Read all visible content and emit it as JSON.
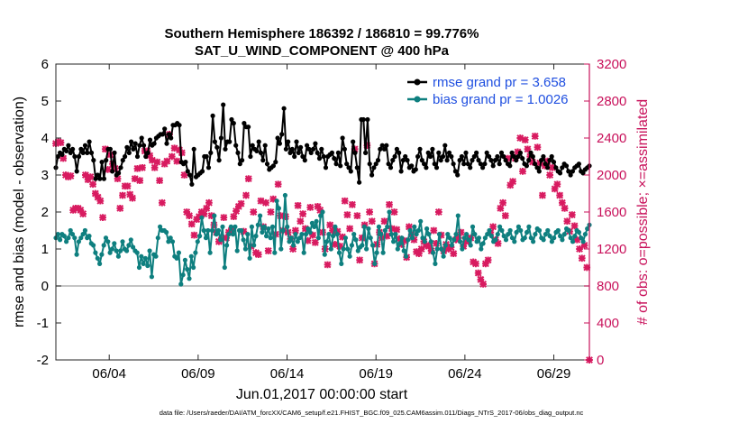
{
  "chart_data": {
    "type": "line",
    "title_line1": "Southern Hemisphere 186392 / 186810 = 99.776%",
    "title_line2": "SAT_U_WIND_COMPONENT @ 400 hPa",
    "xlabel": "Jun.01,2017 00:00:00 start",
    "ylabel": "rmse and bias (model - observation)",
    "ylabel_right": "# of obs: o=possible; ×=assimilated",
    "footnote": "data file: /Users/raeder/DAI/ATM_forcXX/CAM6_setup/f.e21.FHIST_BGC.f09_025.CAM6assim.011/Diags_NTrS_2017-06/obs_diag_output.nc",
    "xlim": [
      1,
      31
    ],
    "ylim": [
      -2,
      6
    ],
    "ylim_right": [
      0,
      3200
    ],
    "x_ticks": [
      4,
      9,
      14,
      19,
      24,
      29
    ],
    "x_tick_labels": [
      "06/04",
      "06/09",
      "06/14",
      "06/19",
      "06/24",
      "06/29"
    ],
    "y_ticks": [
      -2,
      -1,
      0,
      1,
      2,
      3,
      4,
      5,
      6
    ],
    "y_ticks_right": [
      0,
      400,
      800,
      1200,
      1600,
      2000,
      2400,
      2800,
      3200
    ],
    "grid": false,
    "legend_position": "top-right",
    "legend": [
      "rmse grand pr = 3.658",
      "bias grand pr = 1.0026"
    ],
    "colors": {
      "rmse": "#000000",
      "bias": "#0e7f7f",
      "obs": "#d81b60",
      "zero_line": "#b0b0b0",
      "right_axis": "#c8105a"
    },
    "series": [
      {
        "name": "rmse grand pr = 3.658",
        "axis": "left",
        "values": [
          3.2,
          3.5,
          3.6,
          3.55,
          3.7,
          3.65,
          3.8,
          3.6,
          3.7,
          3.5,
          3.1,
          3.5,
          3.7,
          3.6,
          3.8,
          3.6,
          3.9,
          3.6,
          3.4,
          2.9,
          3.0,
          2.9,
          3.35,
          2.9,
          3.4,
          3.7,
          3.7,
          3.1,
          3.6,
          3.0,
          3.05,
          3.2,
          3.4,
          3.5,
          3.75,
          3.6,
          3.9,
          3.7,
          3.85,
          3.5,
          3.8,
          4.0,
          3.8,
          3.5,
          3.6,
          3.95,
          3.8,
          3.85,
          4.0,
          4.05,
          4.1,
          4.1,
          4.25,
          3.85,
          4.1,
          4.0,
          4.35,
          4.35,
          4.4,
          4.35,
          3.35,
          3.3,
          3.35,
          3.1,
          3.0,
          2.75,
          3.7,
          2.95,
          3.0,
          3.05,
          3.1,
          3.5,
          3.5,
          3.2,
          3.6,
          4.6,
          3.9,
          3.75,
          3.4,
          4.0,
          4.9,
          3.7,
          3.9,
          3.9,
          4.5,
          4.4,
          3.8,
          3.6,
          3.3,
          3.4,
          4.4,
          4.3,
          4.3,
          3.5,
          3.8,
          3.7,
          3.65,
          3.9,
          3.6,
          3.4,
          3.8,
          3.3,
          3.15,
          3.2,
          3.25,
          3.35,
          4.0,
          3.85,
          4.1,
          4.8,
          3.7,
          3.9,
          3.6,
          3.7,
          3.5,
          3.9,
          3.6,
          3.75,
          3.5,
          3.4,
          3.8,
          3.7,
          3.6,
          3.7,
          3.85,
          3.6,
          3.45,
          3.7,
          3.5,
          3.2,
          3.5,
          3.55,
          3.6,
          3.45,
          3.3,
          3.6,
          3.25,
          4.0,
          3.7,
          3.3,
          3.2,
          3.1,
          3.9,
          3.6,
          3.2,
          2.8,
          4.5,
          4.5,
          3.6,
          4.5,
          3.3,
          3.0,
          3.2,
          3.3,
          3.4,
          3.7,
          3.8,
          3.7,
          3.8,
          3.3,
          3.2,
          3.4,
          3.5,
          3.7,
          3.6,
          3.1,
          3.4,
          3.5,
          3.4,
          3.2,
          3.25,
          3.1,
          3.15,
          3.5,
          3.7,
          3.4,
          3.3,
          3.2,
          3.6,
          3.5,
          3.7,
          3.3,
          3.2,
          3.6,
          3.4,
          3.5,
          3.8,
          3.4,
          3.6,
          3.5,
          3.3,
          3.1,
          3.0,
          3.4,
          3.5,
          3.3,
          3.6,
          3.3,
          3.2,
          3.4,
          3.5,
          3.6,
          3.4,
          3.3,
          3.2,
          3.3,
          3.6,
          3.5,
          3.4,
          3.25,
          3.4,
          3.5,
          3.3,
          3.6,
          3.5,
          3.4,
          3.3,
          3.25,
          3.6,
          3.5,
          3.4,
          3.5,
          3.6,
          3.45,
          3.3,
          3.25,
          3.4,
          3.6,
          3.5,
          3.3,
          3.2,
          3.1,
          3.4,
          3.5,
          3.3,
          3.2,
          3.4,
          3.5,
          3.35,
          3.2,
          3.1,
          3.05,
          3.2,
          3.3,
          3.25,
          3.1,
          3.0,
          3.1,
          3.2,
          3.25,
          3.3,
          3.1,
          3.05,
          3.15,
          3.2,
          3.25
        ]
      },
      {
        "name": "bias grand pr = 1.0026",
        "axis": "left",
        "values": [
          1.3,
          1.4,
          1.25,
          1.4,
          1.35,
          1.2,
          1.3,
          1.5,
          1.4,
          1.3,
          0.85,
          1.2,
          1.3,
          1.4,
          1.5,
          1.3,
          1.35,
          1.15,
          1.1,
          0.9,
          0.75,
          0.6,
          0.85,
          1.1,
          1.3,
          1.2,
          0.9,
          1.0,
          1.15,
          0.95,
          0.8,
          0.95,
          1.2,
          1.0,
          0.95,
          1.1,
          1.25,
          1.05,
          0.95,
          0.9,
          0.5,
          0.8,
          0.6,
          0.75,
          0.55,
          0.95,
          0.25,
          0.85,
          0.8,
          1.3,
          1.6,
          1.5,
          1.5,
          1.45,
          1.2,
          1.3,
          1.2,
          0.8,
          0.75,
          0.9,
          0.05,
          0.3,
          0.7,
          0.45,
          0.2,
          0.8,
          0.5,
          0.9,
          1.2,
          1.35,
          1.85,
          1.5,
          1.3,
          1.5,
          0.9,
          1.5,
          1.9,
          1.4,
          1.5,
          1.25,
          1.6,
          0.5,
          1.1,
          1.4,
          1.6,
          1.4,
          1.6,
          0.95,
          1.5,
          1.5,
          1.25,
          1.0,
          1.4,
          0.75,
          1.6,
          1.1,
          1.35,
          1.65,
          1.9,
          1.45,
          1.6,
          1.35,
          1.55,
          1.3,
          1.6,
          0.9,
          2.3,
          2.1,
          1.0,
          1.5,
          2.45,
          1.6,
          1.2,
          1.3,
          1.1,
          1.4,
          1.2,
          1.3,
          1.4,
          0.9,
          1.4,
          1.55,
          1.45,
          1.7,
          1.6,
          1.75,
          1.3,
          1.9,
          2.0,
          0.85,
          1.2,
          1.4,
          1.0,
          1.35,
          1.6,
          1.4,
          0.9,
          0.6,
          1.0,
          1.3,
          1.0,
          0.8,
          1.1,
          1.4,
          1.25,
          0.95,
          1.05,
          1.1,
          1.6,
          1.0,
          1.55,
          1.3,
          1.1,
          0.6,
          0.9,
          1.6,
          1.4,
          0.9,
          1.5,
          1.6,
          2.0,
          1.4,
          1.2,
          1.4,
          1.0,
          1.15,
          1.3,
          0.95,
          0.8,
          1.25,
          1.5,
          1.3,
          1.6,
          1.4,
          1.5,
          1.75,
          1.3,
          1.2,
          1.55,
          1.4,
          1.2,
          0.9,
          0.6,
          1.0,
          1.4,
          1.0,
          0.8,
          1.1,
          1.4,
          1.3,
          1.1,
          1.25,
          1.4,
          1.9,
          1.2,
          1.0,
          1.3,
          1.4,
          1.25,
          1.1,
          1.6,
          1.4,
          1.2,
          1.3,
          1.0,
          1.15,
          1.3,
          1.4,
          1.5,
          1.35,
          1.2,
          1.25,
          1.4,
          1.6,
          1.5,
          1.35,
          1.25,
          1.4,
          1.5,
          1.3,
          1.2,
          1.45,
          1.6,
          1.5,
          1.25,
          1.3,
          1.45,
          1.6,
          1.3,
          1.2,
          1.4,
          1.55,
          1.5,
          1.3,
          1.25,
          1.4,
          1.5,
          1.35,
          1.2,
          1.3,
          1.45,
          1.5,
          1.35,
          1.25,
          1.4,
          1.55,
          1.5,
          1.3,
          1.2,
          1.35,
          1.5,
          1.45,
          1.3,
          1.2,
          1.4,
          1.55,
          1.65
        ]
      }
    ],
    "obs_count_assimilated": {
      "axis": "right",
      "values": [
        2340,
        2360,
        2350,
        2180,
        2000,
        1980,
        1990,
        1620,
        1640,
        1640,
        1620,
        1580,
        2000,
        1950,
        1980,
        1900,
        1800,
        1760,
        1720,
        1540,
        2280,
        2060,
        2220,
        2120,
        2070,
        1960,
        1640,
        1780,
        1880,
        1880,
        1790,
        1750,
        1960,
        2070,
        1940,
        2080,
        2260,
        2260,
        2210,
        2160,
        2080,
        2140,
        1940,
        1700,
        2120,
        2150,
        2440,
        2200,
        2290,
        2150,
        2270,
        2240,
        2000,
        1600,
        1560,
        1470,
        1350,
        1520,
        1550,
        1600,
        1580,
        1640,
        1700,
        1560,
        1460,
        1380,
        1280,
        1300,
        1540,
        1320,
        1380,
        1400,
        1550,
        1610,
        1660,
        1690,
        1390,
        1780,
        1960,
        1230,
        1600,
        1160,
        1140,
        1720,
        1440,
        1700,
        1180,
        1600,
        1740,
        1360,
        1900,
        1560,
        1400,
        1550,
        1380,
        1310,
        1200,
        1400,
        1670,
        1500,
        1580,
        1420,
        1290,
        1650,
        1350,
        1270,
        1660,
        1620,
        1380,
        1200,
        1030,
        1460,
        1400,
        1250,
        1390,
        1230,
        1330,
        1720,
        1570,
        1420,
        1680,
        2280,
        1560,
        1080,
        1320,
        1460,
        2320,
        1600,
        1500,
        1040,
        1250,
        1380,
        1320,
        1500,
        1340,
        1680,
        1420,
        1600,
        1410,
        1310,
        1250,
        1290,
        1110,
        1440,
        1360,
        1300,
        1170,
        1150,
        1200,
        1280,
        1240,
        1230,
        1180,
        1400,
        1260,
        1600,
        1350,
        1180,
        1250,
        1200,
        1220,
        1150,
        1300,
        1320,
        1380,
        1230,
        1280,
        1290,
        1320,
        1060,
        1040,
        940,
        870,
        820,
        1040,
        1080,
        1380,
        1440,
        1300,
        1260,
        1640,
        1700,
        1560,
        2180,
        1890,
        1930,
        2180,
        2250,
        2400,
        2040,
        2380,
        2280,
        2200,
        2140,
        2420,
        2300,
        2130,
        1780,
        2100,
        2150,
        2000,
        2080,
        1850,
        1900,
        1780,
        1700,
        1640,
        1500,
        1390,
        1570,
        1450,
        1300,
        1200,
        1100,
        1240,
        1000,
        0
      ]
    }
  }
}
